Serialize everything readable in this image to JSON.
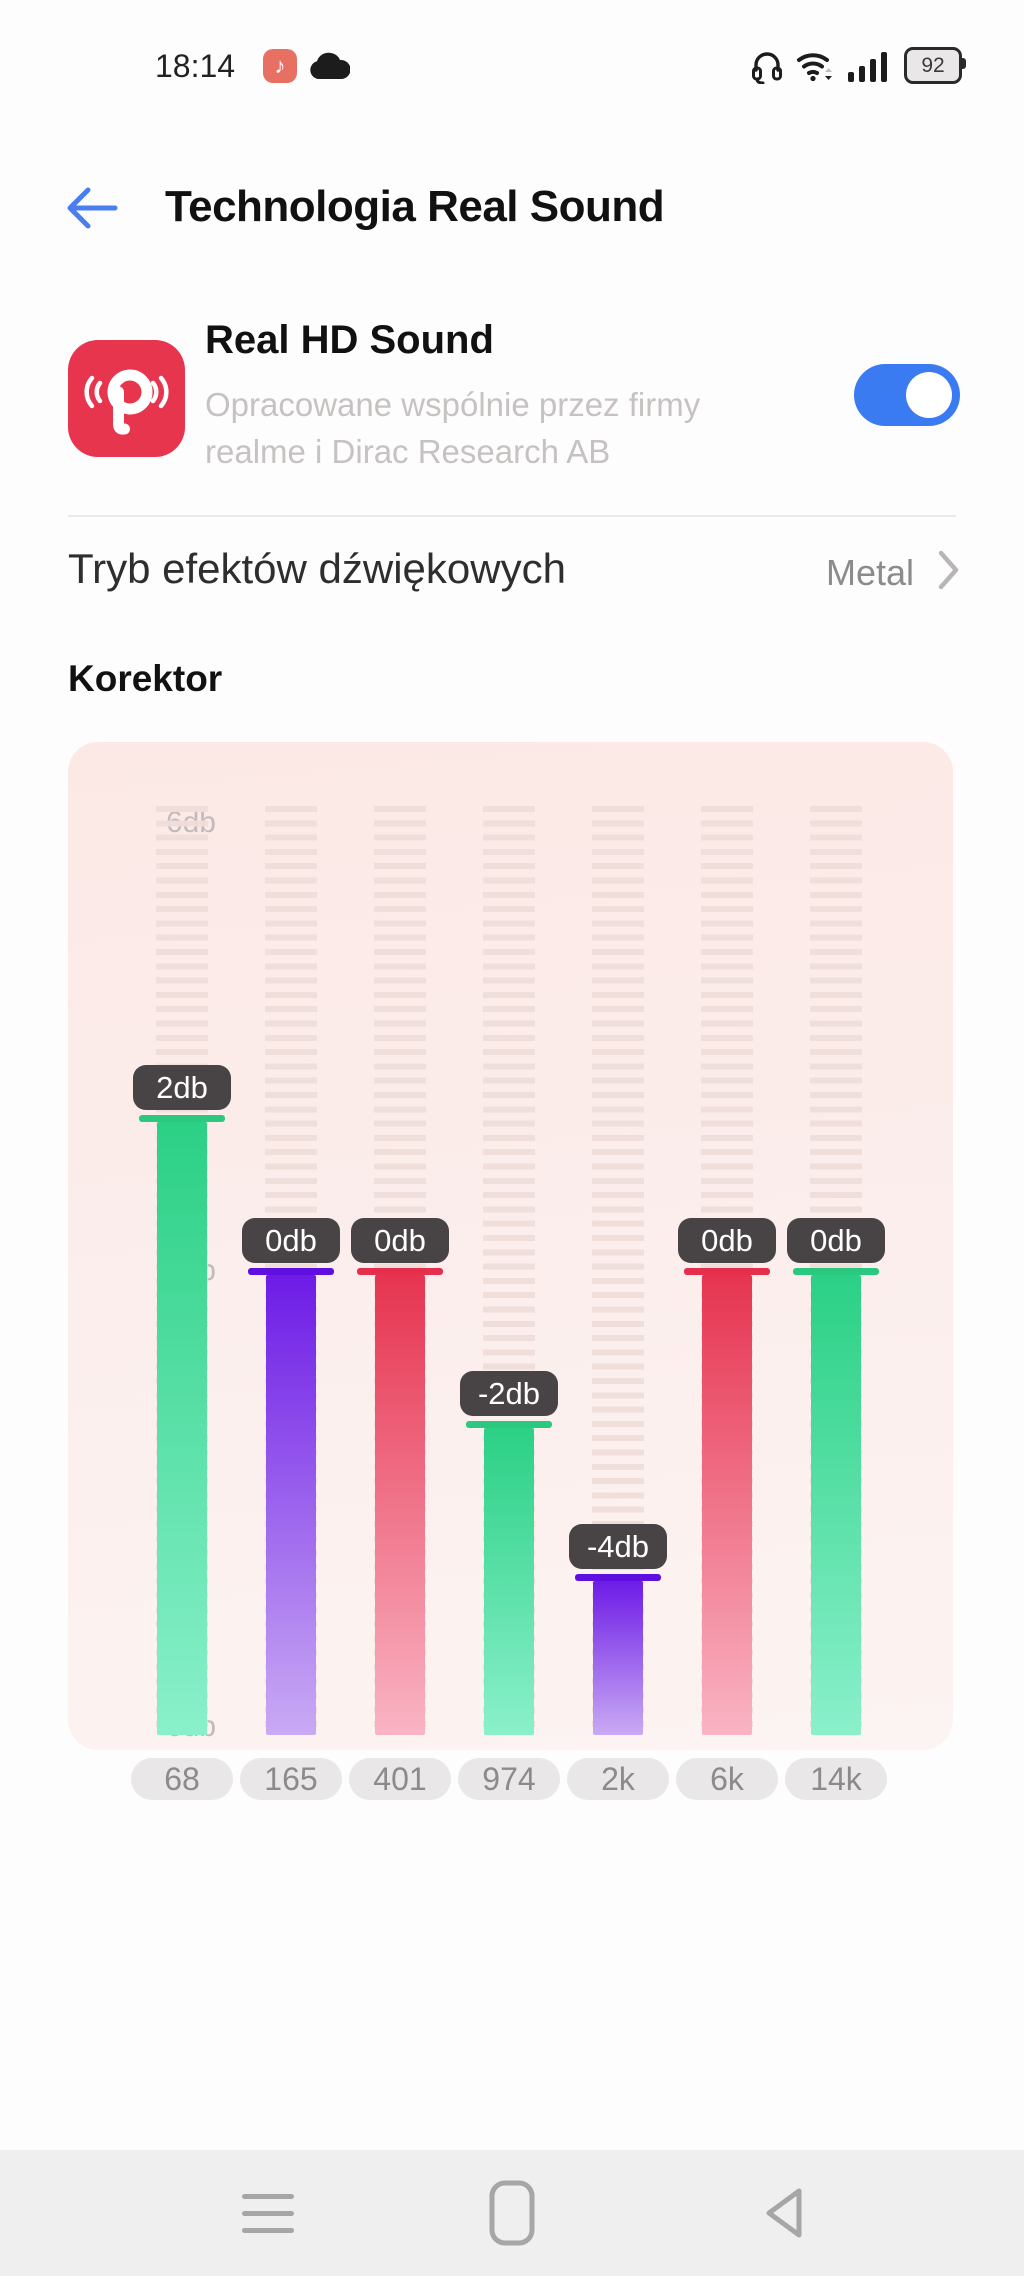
{
  "status_bar": {
    "time": "18:14",
    "battery": "92",
    "icons": [
      "music-app-icon",
      "cloud-icon",
      "headset-icon",
      "wifi-icon",
      "signal-icon",
      "battery-icon"
    ],
    "music_note_glyph": "♪"
  },
  "header": {
    "title": "Technologia Real Sound",
    "back_icon": "arrow-left-icon"
  },
  "real_hd": {
    "title": "Real HD Sound",
    "subtitle": "Opracowane wspólnie przez firmy realme i Dirac Research AB",
    "toggle_on": true,
    "accent_color": "#3b7bf2",
    "icon_color": "#e8354e"
  },
  "sound_mode": {
    "label": "Tryb efektów dźwiękowych",
    "value": "Metal"
  },
  "equalizer": {
    "heading": "Korektor",
    "axis_labels": [
      "6db",
      "0db",
      "-6db"
    ],
    "range_db": [
      -6,
      6
    ],
    "bands": [
      {
        "freq": "68",
        "value_db": 2,
        "label": "2db",
        "color": "green"
      },
      {
        "freq": "165",
        "value_db": 0,
        "label": "0db",
        "color": "purple"
      },
      {
        "freq": "401",
        "value_db": 0,
        "label": "0db",
        "color": "red"
      },
      {
        "freq": "974",
        "value_db": -2,
        "label": "-2db",
        "color": "green"
      },
      {
        "freq": "2k",
        "value_db": -4,
        "label": "-4db",
        "color": "purple"
      },
      {
        "freq": "6k",
        "value_db": 0,
        "label": "0db",
        "color": "red"
      },
      {
        "freq": "14k",
        "value_db": 0,
        "label": "0db",
        "color": "green"
      }
    ],
    "colors": {
      "green": {
        "solid": "#2bc97f",
        "top": "#2bd085",
        "bottom": "#8af0cb"
      },
      "purple": {
        "solid": "#5f10e0",
        "top": "#6d1ce6",
        "bottom": "#c9aaf4"
      },
      "red": {
        "solid": "#e62e4d",
        "top": "#e63450",
        "bottom": "#f9b4c4"
      }
    },
    "badge_bg": "#484345"
  },
  "nav_bar": {
    "icons": [
      "menu-icon",
      "home-icon",
      "back-triangle-icon"
    ]
  }
}
